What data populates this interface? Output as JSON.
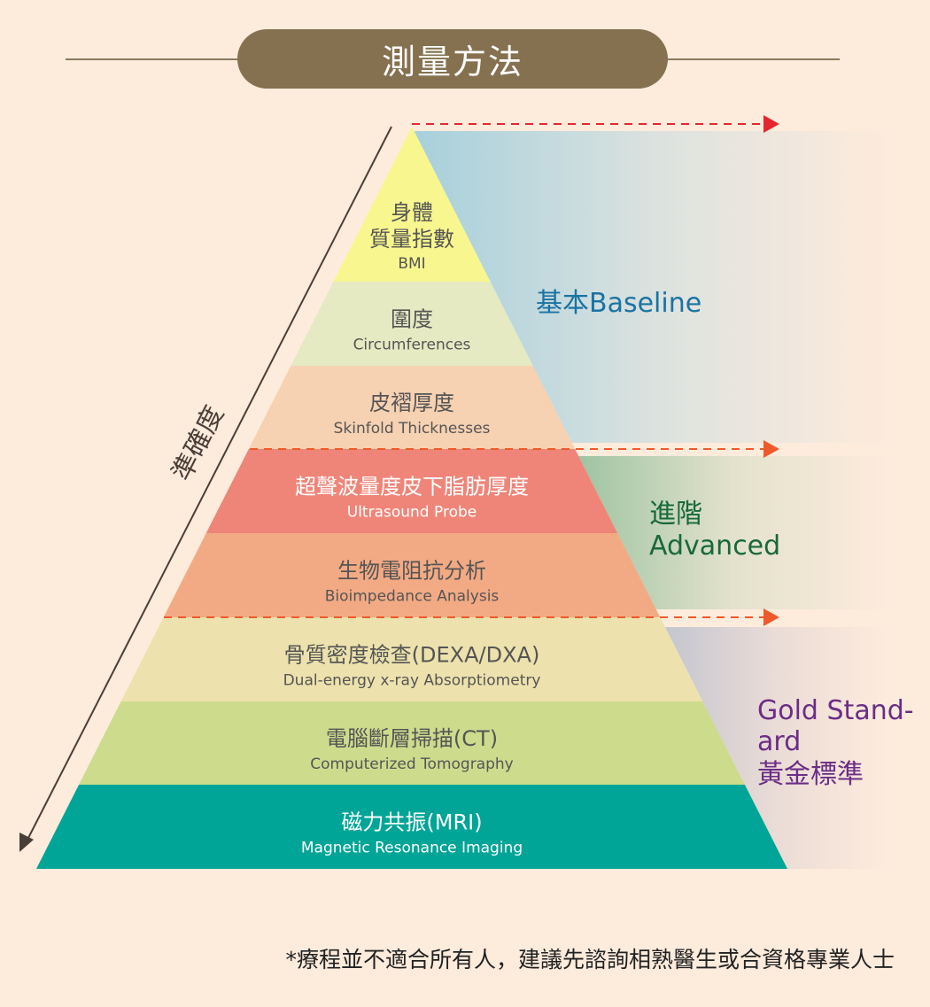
{
  "title": "測量方法",
  "axis_label": "準確度",
  "levels": [
    {
      "zh": "身體",
      "zh2": "質量指數",
      "en": "BMI",
      "color": "#f8f68e",
      "text_color": "#555555"
    },
    {
      "zh": "圍度",
      "en": "Circumferences",
      "color": "#e5eac3",
      "text_color": "#555555"
    },
    {
      "zh": "皮褶厚度",
      "en": "Skinfold Thicknesses",
      "color": "#f6d1b2",
      "text_color": "#555555"
    },
    {
      "zh": "超聲波量度皮下脂肪厚度",
      "en": "Ultrasound Probe",
      "color": "#ef8579",
      "text_color": "#ffffff"
    },
    {
      "zh": "生物電阻抗分析",
      "en": "Bioimpedance Analysis",
      "color": "#f2aa84",
      "text_color": "#555555"
    },
    {
      "zh": "骨質密度檢查(DEXA/DXA)",
      "en": "Dual-energy x-ray Absorptiometry",
      "color": "#ede2ad",
      "text_color": "#555555"
    },
    {
      "zh": "電腦斷層掃描(CT)",
      "en": "Computerized Tomography",
      "color": "#cddb8d",
      "text_color": "#555555"
    },
    {
      "zh": "磁力共振(MRI)",
      "en": "Magnetic Resonance Imaging",
      "color": "#00a597",
      "text_color": "#ffffff"
    }
  ],
  "tiers": {
    "baseline": {
      "label": "基本Baseline",
      "color": "#1a73a3"
    },
    "advanced": {
      "line1": "進階",
      "line2": "Advanced",
      "color": "#17693a"
    },
    "gold": {
      "line1": "Gold Stand-",
      "line2": "ard",
      "line3": "黃金標準",
      "color": "#6b2d86"
    }
  },
  "footnote": "*療程並不適合所有人，建議先諮詢相熟醫生或合資格專業人士"
}
